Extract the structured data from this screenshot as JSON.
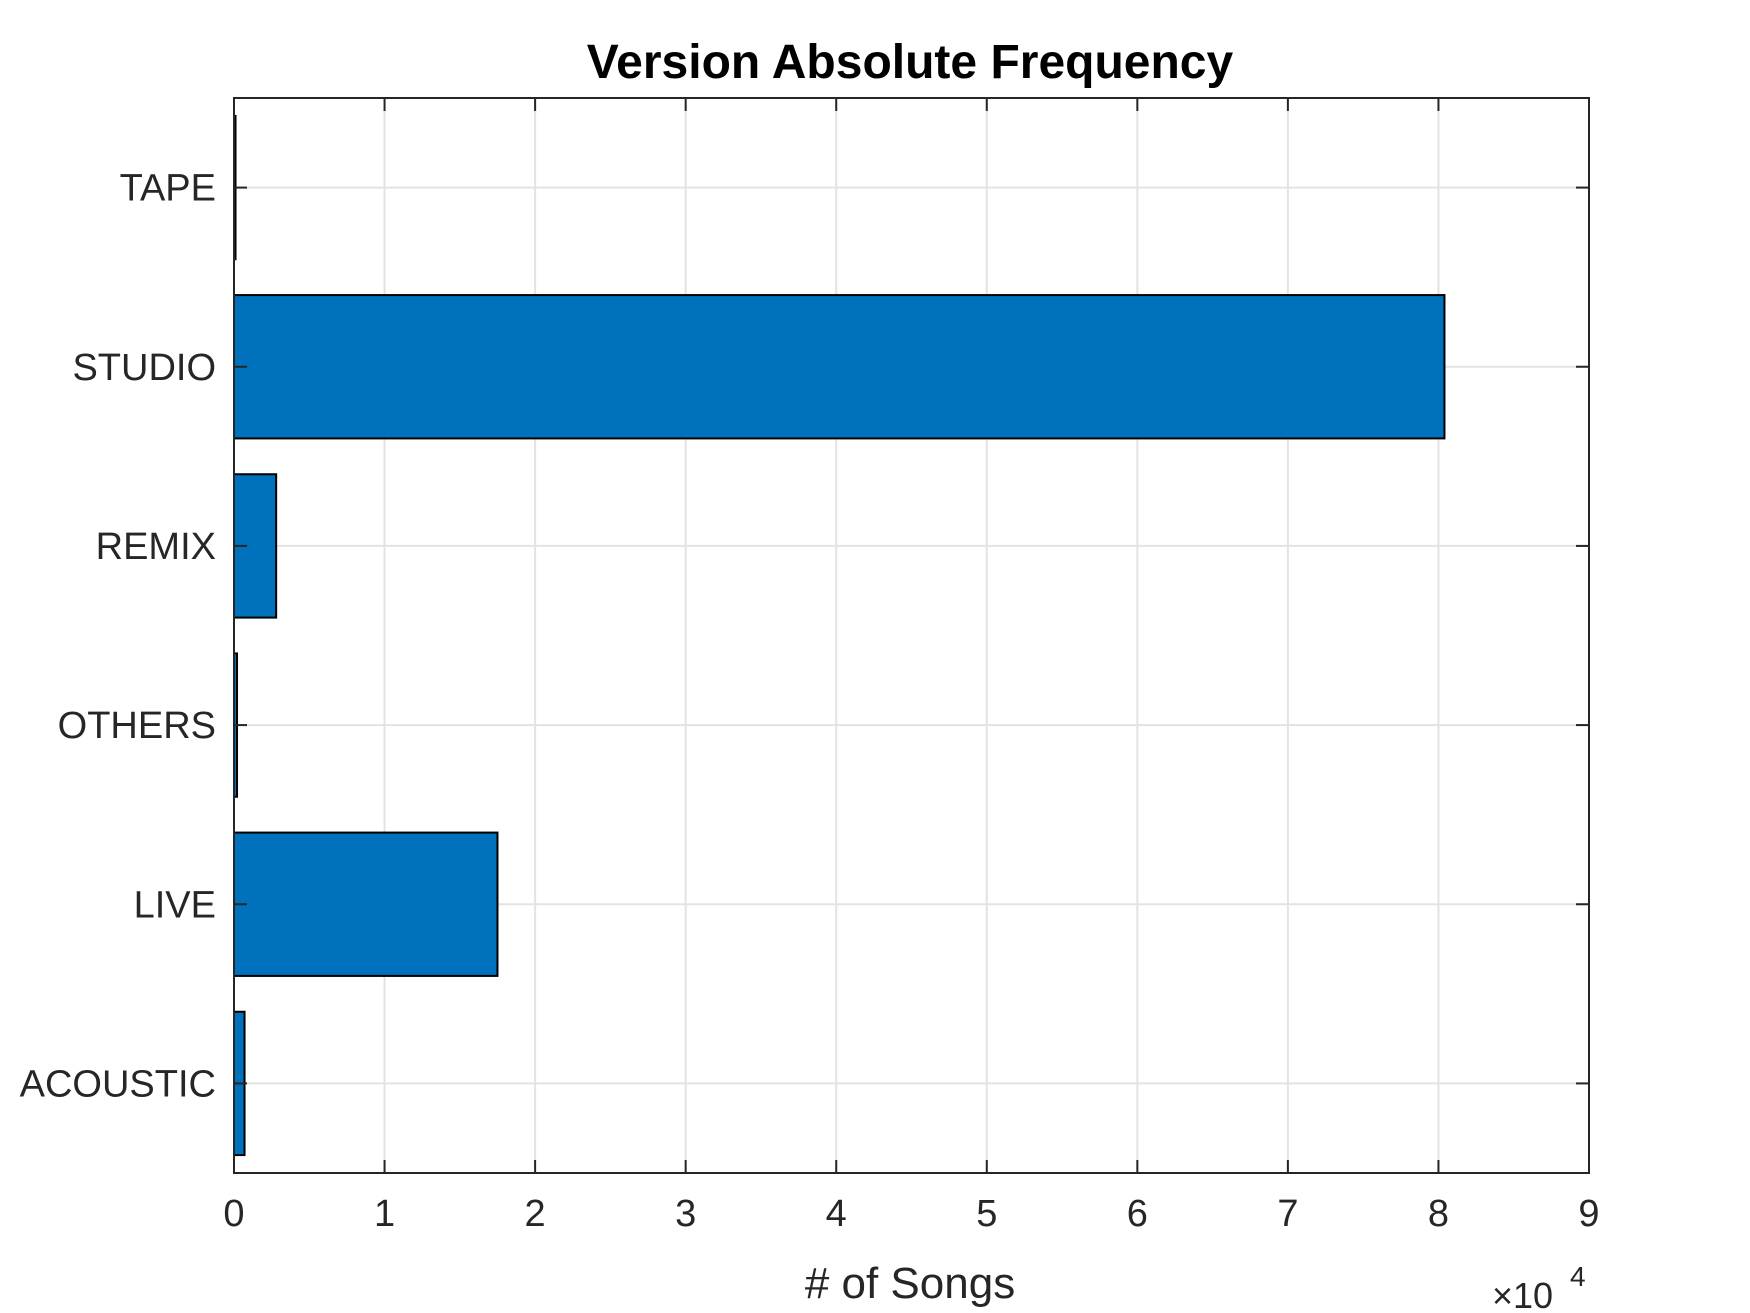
{
  "chart_data": {
    "type": "bar",
    "orientation": "horizontal",
    "title": "Version Absolute Frequency",
    "xlabel": "# of Songs",
    "ylabel": "",
    "categories": [
      "ACOUSTIC",
      "LIVE",
      "OTHERS",
      "REMIX",
      "STUDIO",
      "TAPE"
    ],
    "values": [
      700,
      17500,
      200,
      2800,
      80400,
      100
    ],
    "xlim": [
      0,
      90000
    ],
    "x_ticks": [
      0,
      10000,
      20000,
      30000,
      40000,
      50000,
      60000,
      70000,
      80000,
      90000
    ],
    "x_tick_labels": [
      "0",
      "1",
      "2",
      "3",
      "4",
      "5",
      "6",
      "7",
      "8",
      "9"
    ],
    "x_exponent": {
      "base": "×10",
      "power": "4"
    },
    "grid": true,
    "bar_color": "#0072BD",
    "bar_edge_color": "#000000"
  }
}
